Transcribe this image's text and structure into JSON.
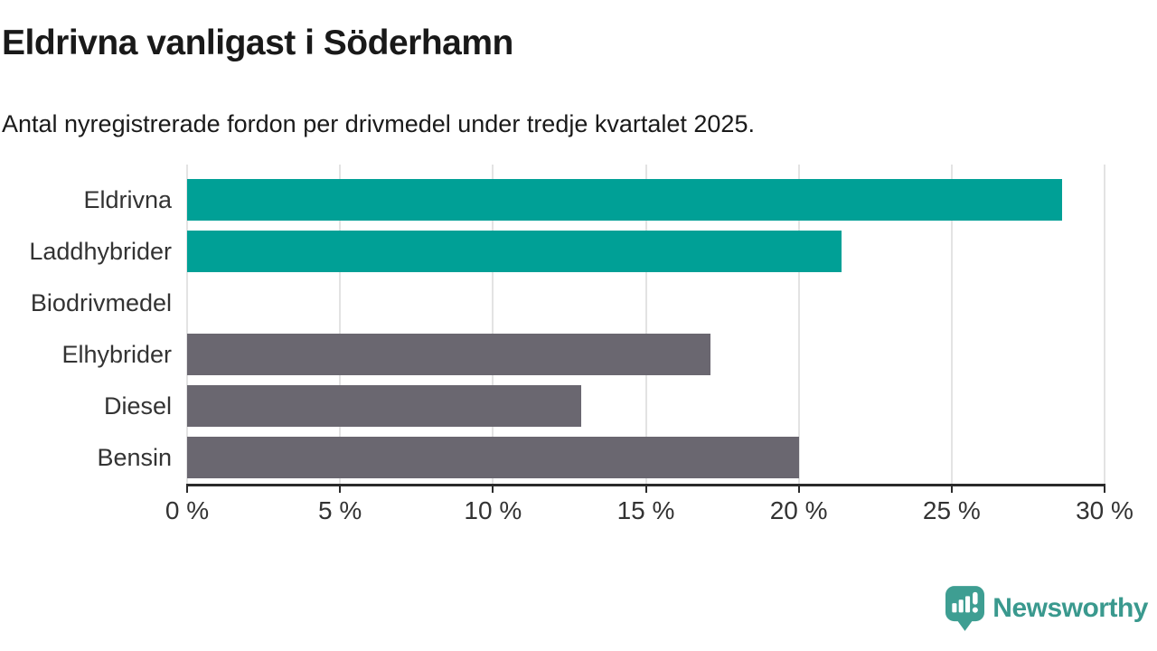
{
  "header": {
    "title": "Eldrivna vanligast i Söderhamn",
    "subtitle": "Antal nyregistrerade fordon per drivmedel under tredje kvartalet 2025."
  },
  "chart_data": {
    "type": "bar",
    "orientation": "horizontal",
    "title": "Eldrivna vanligast i Söderhamn",
    "subtitle": "Antal nyregistrerade fordon per drivmedel under tredje kvartalet 2025.",
    "categories": [
      "Eldrivna",
      "Laddhybrider",
      "Biodrivmedel",
      "Elhybrider",
      "Diesel",
      "Bensin"
    ],
    "values": [
      28.6,
      21.4,
      0,
      17.1,
      12.9,
      20
    ],
    "unit": "%",
    "bar_colors": [
      "#00a096",
      "#00a096",
      "#00a096",
      "#6a6770",
      "#6a6770",
      "#6a6770"
    ],
    "xlabel": "",
    "ylabel": "",
    "xlim": [
      0,
      30
    ],
    "xticks": [
      0,
      5,
      10,
      15,
      20,
      25,
      30
    ],
    "xtick_labels": [
      "0 %",
      "5 %",
      "10 %",
      "15 %",
      "20 %",
      "25 %",
      "30 %"
    ],
    "grid": true,
    "legend": "none"
  },
  "colors": {
    "accent_teal": "#00a096",
    "muted_gray": "#6a6770",
    "gridline": "#e3e3e3",
    "axis": "#2b2b2b",
    "text_dark": "#191919",
    "text_label": "#333333",
    "brand_teal": "#3a998e"
  },
  "footer": {
    "brand": "Newsworthy",
    "logo_icon": "newsworthy-bubble-chart-icon"
  }
}
